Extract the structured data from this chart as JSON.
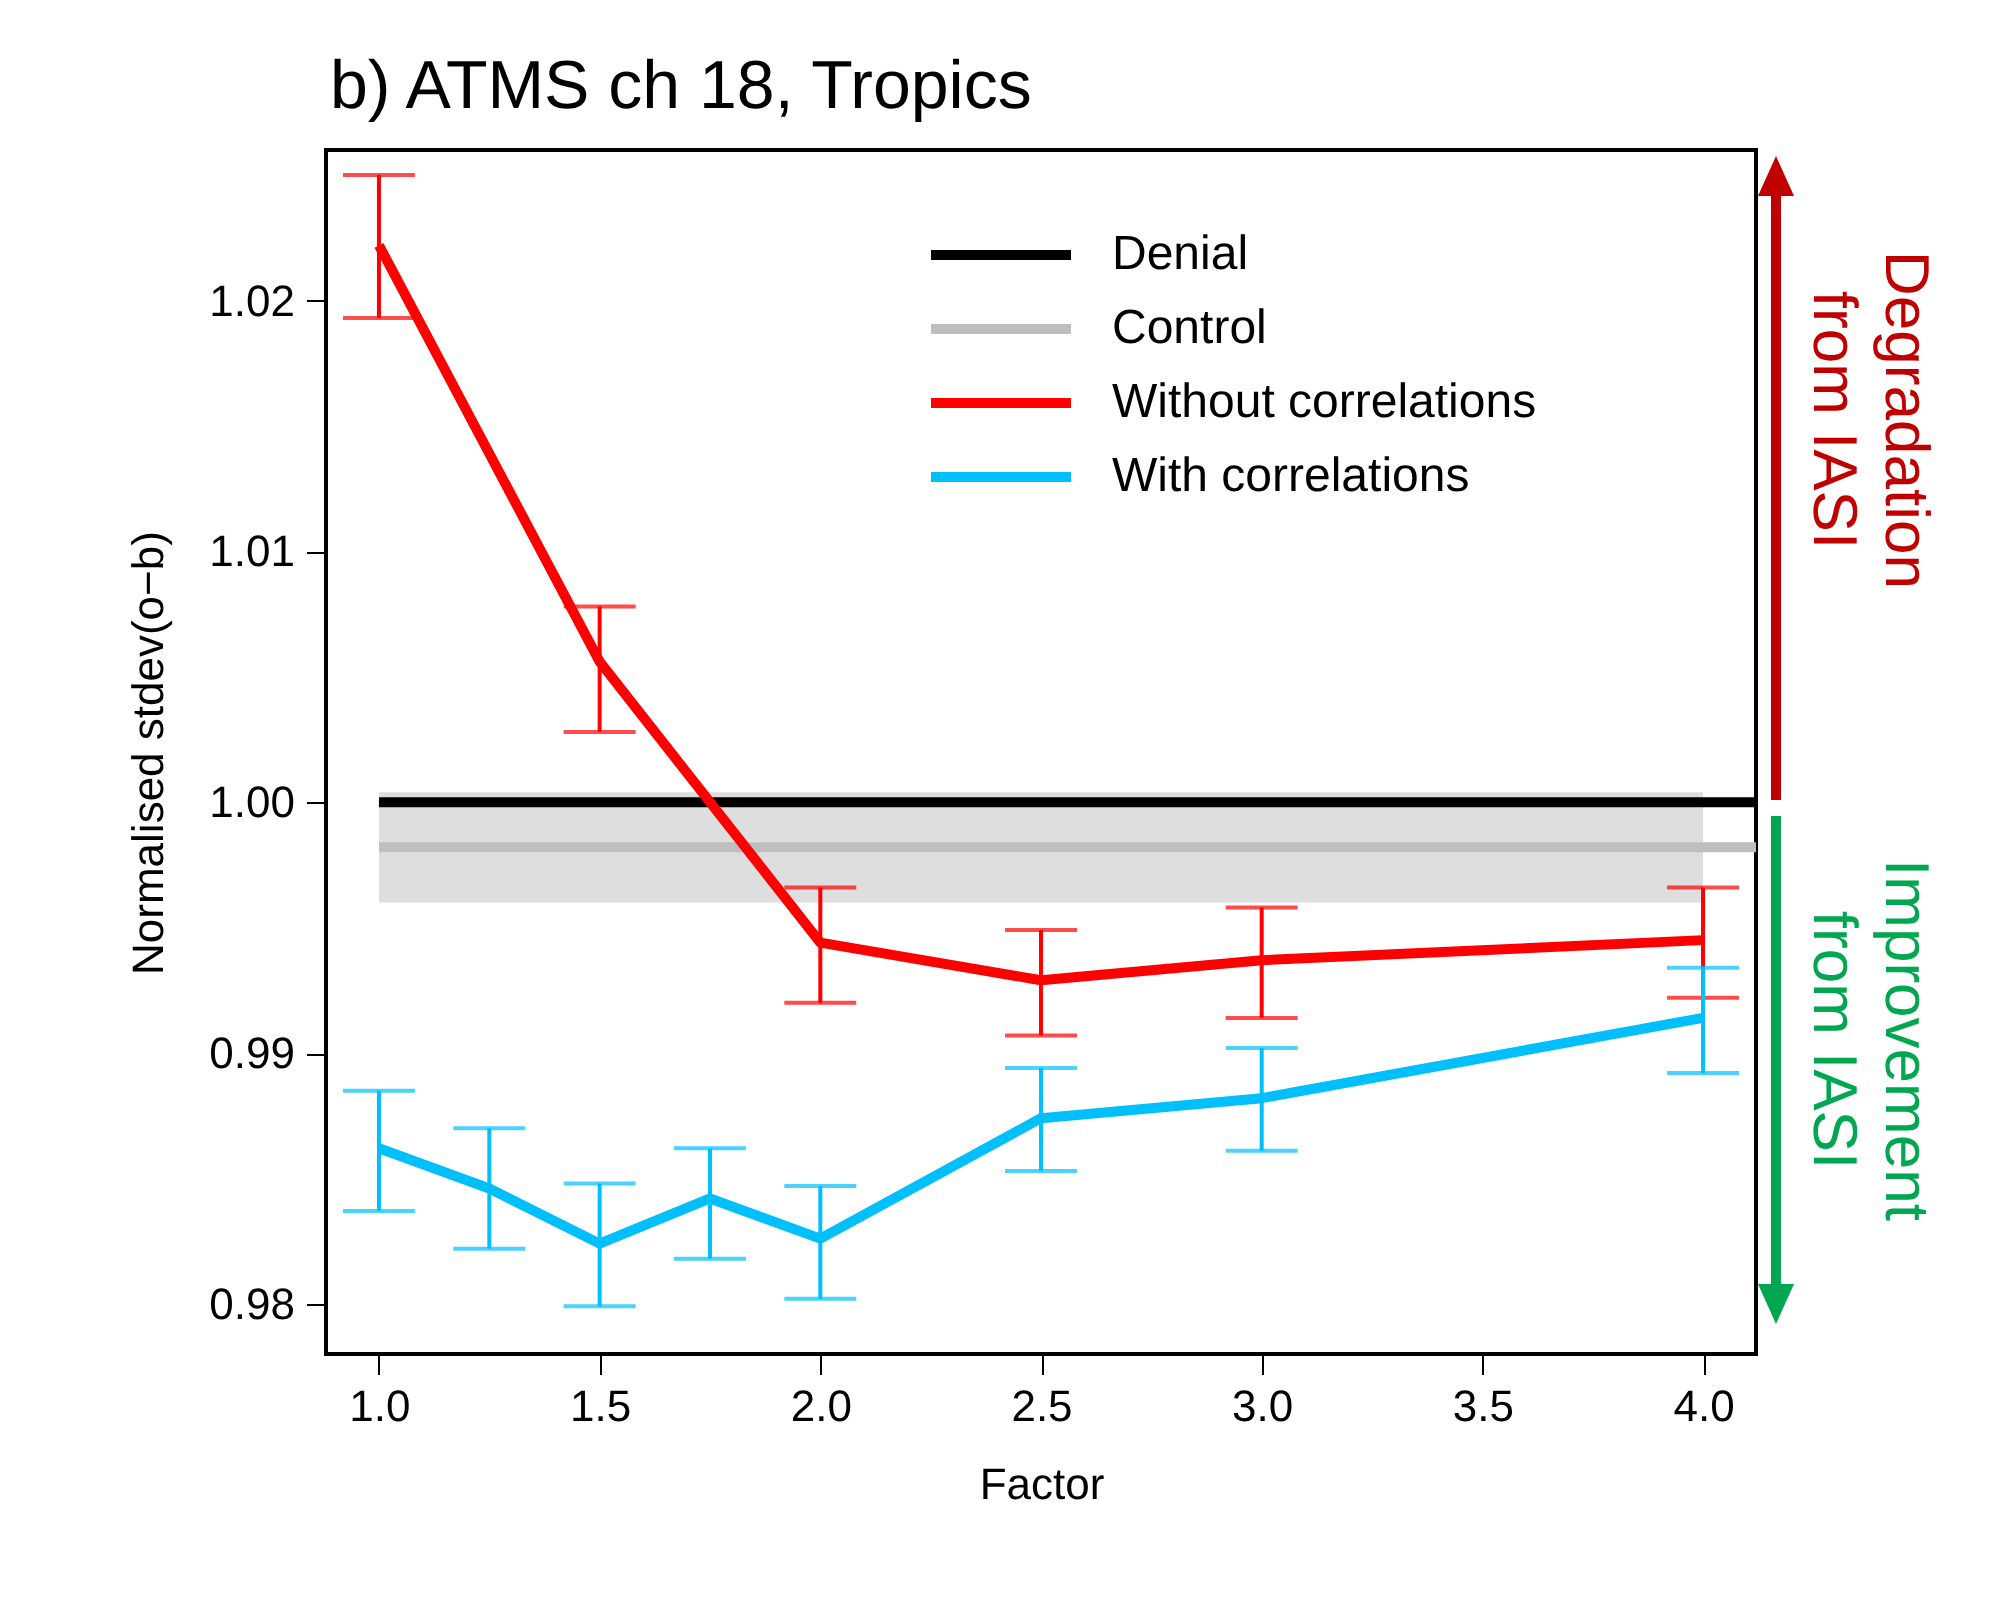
{
  "chart_data": {
    "type": "line",
    "title": "b) ATMS ch 18, Tropics",
    "xlabel": "Factor",
    "ylabel": "Normalised stdev(o−b)",
    "xlim": [
      0.88,
      4.12
    ],
    "ylim": [
      0.978,
      1.026
    ],
    "xticks": [
      {
        "value": 1,
        "label": "1.0"
      },
      {
        "value": 1.5,
        "label": "1.5"
      },
      {
        "value": 2,
        "label": "2.0"
      },
      {
        "value": 2.5,
        "label": "2.5"
      },
      {
        "value": 3,
        "label": "3.0"
      },
      {
        "value": 3.5,
        "label": "3.5"
      },
      {
        "value": 4,
        "label": "4.0"
      }
    ],
    "yticks": [
      0.98,
      0.99,
      {
        "value": 1,
        "label": "1.00"
      },
      1.01,
      1.02
    ],
    "grid": false,
    "legend": "top right",
    "marker": "none",
    "line_style": "solid",
    "series": [
      {
        "name": "Denial",
        "color": "#000000",
        "x": [
          1,
          4.12
        ],
        "values": [
          1.0,
          1.0
        ]
      },
      {
        "name": "Control",
        "color": "#bebebe",
        "x": [
          1,
          4,
          4.12
        ],
        "values": [
          0.9982,
          0.9982,
          0.9982
        ],
        "lower": [
          0.996,
          0.996,
          null
        ],
        "upper": [
          1.0004,
          1.0004,
          null
        ]
      },
      {
        "name": "Without correlations",
        "color": "#ff0000",
        "x": [
          1,
          1.5,
          2,
          2.5,
          3,
          4
        ],
        "values": [
          1.0222,
          1.0056,
          0.9944,
          0.9929,
          0.9937,
          0.9945
        ],
        "errors": [
          [
            1.0193,
            1.025
          ],
          [
            1.0028,
            1.0078
          ],
          [
            0.992,
            0.9966
          ],
          [
            0.9907,
            0.9949
          ],
          [
            0.9914,
            0.9958
          ],
          [
            0.9922,
            0.9966
          ]
        ]
      },
      {
        "name": "With correlations",
        "color": "#00bfff",
        "x": [
          1,
          1.25,
          1.5,
          1.75,
          2,
          2.5,
          3,
          4
        ],
        "values": [
          0.9862,
          0.9846,
          0.9824,
          0.9842,
          0.9826,
          0.9874,
          0.9882,
          0.9914
        ],
        "errors": [
          [
            0.9837,
            0.9885
          ],
          [
            0.9822,
            0.987
          ],
          [
            0.9799,
            0.9848
          ],
          [
            0.9818,
            0.9862
          ],
          [
            0.9802,
            0.9847
          ],
          [
            0.9853,
            0.9894
          ],
          [
            0.9861,
            0.9902
          ],
          [
            0.9892,
            0.9934
          ]
        ]
      }
    ],
    "annotations": [
      "Degradation from IASI",
      "Improvement from IASI"
    ]
  }
}
